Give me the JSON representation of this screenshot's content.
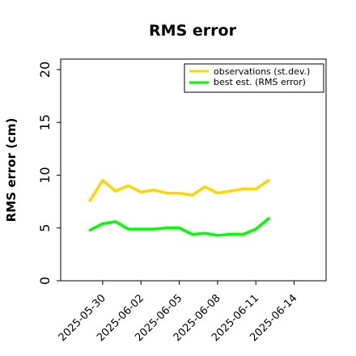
{
  "chart_data": {
    "type": "line",
    "title": "RMS error",
    "xlabel": "",
    "ylabel": "RMS error (cm)",
    "ylim": [
      0,
      21
    ],
    "yticks": [
      0,
      5,
      10,
      15,
      20
    ],
    "xlim": [
      "2025-05-26T17:00",
      "2025-06-16T12:00"
    ],
    "xticks": [
      {
        "date": "2025-05-30",
        "label": "2025-05-30",
        "color": "#000000"
      },
      {
        "date": "2025-06-02",
        "label": "2025-06-02",
        "color": "#000000"
      },
      {
        "date": "2025-06-05",
        "label": "2025-06-05",
        "color": "#228b22"
      },
      {
        "date": "2025-06-08",
        "label": "2025-06-08",
        "color": "#000000"
      },
      {
        "date": "2025-06-11",
        "label": "2025-06-11",
        "color": "#000000"
      },
      {
        "date": "2025-06-14",
        "label": "2025-06-14",
        "color": "#000000"
      }
    ],
    "x": [
      "2025-05-29",
      "2025-05-30",
      "2025-05-31",
      "2025-06-01",
      "2025-06-02",
      "2025-06-03",
      "2025-06-04",
      "2025-06-05",
      "2025-06-06",
      "2025-06-07",
      "2025-06-08",
      "2025-06-09",
      "2025-06-10",
      "2025-06-11",
      "2025-06-12",
      "2025-06-13"
    ],
    "series": [
      {
        "name": "observations (st.dev.)",
        "color": "#ffd700",
        "values": [
          7.6,
          9.5,
          8.5,
          9.0,
          8.4,
          8.6,
          8.3,
          8.3,
          8.1,
          8.9,
          8.3,
          8.5,
          8.7,
          8.7,
          9.5,
          null
        ]
      },
      {
        "name": "best est. (RMS error)",
        "color": "#00ff00",
        "values": [
          4.8,
          5.4,
          5.6,
          4.9,
          4.9,
          4.9,
          5.0,
          5.0,
          4.4,
          4.5,
          4.3,
          4.4,
          4.4,
          4.9,
          5.9,
          null
        ]
      }
    ],
    "grid": false,
    "legend_position": "top-right"
  }
}
